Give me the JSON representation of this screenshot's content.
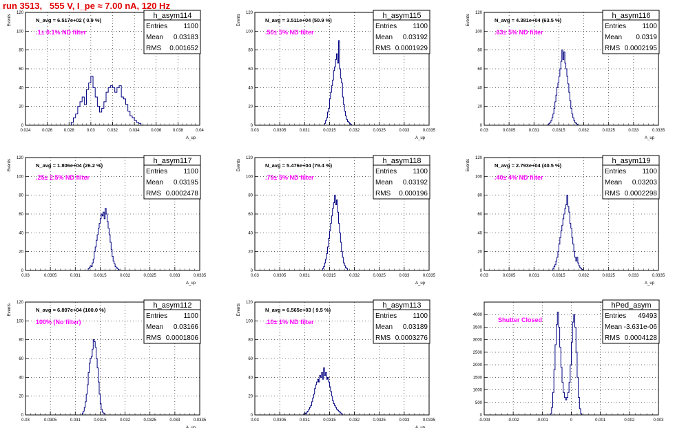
{
  "run_title": "run 3513,   555 V, I_pe ≈ 7.00 nA, 120 Hz",
  "colors": {
    "title": "#e00000",
    "histogram": "#000080",
    "annotation": "#ff00ff",
    "grid": "#000000"
  },
  "chart_data": [
    {
      "type": "bar",
      "name": "h_asym114",
      "stats": {
        "entries_label": "Entries",
        "entries": "1100",
        "mean_label": "Mean",
        "mean": "0.03183",
        "rms_label": "RMS",
        "rms": "0.001652"
      },
      "navg": "N_avg = 6.517e+02 ( 0.9 %)",
      "annotation": ".1± 0.1% ND filter",
      "ylabel": "Events",
      "xlabel": "A_up",
      "xlim": [
        0.024,
        0.04
      ],
      "ylim": [
        0,
        120
      ],
      "xticks": [
        "0.024",
        "0.026",
        "0.028",
        "0.03",
        "0.032",
        "0.034",
        "0.036",
        "0.038",
        "0.04"
      ],
      "yticks": [
        "0",
        "20",
        "40",
        "60",
        "80",
        "100",
        "120"
      ],
      "bins": {
        "start": 0.0282,
        "width": 0.0002,
        "values": [
          3,
          8,
          12,
          20,
          25,
          30,
          22,
          38,
          45,
          52,
          40,
          30,
          20,
          14,
          18,
          25,
          35,
          40,
          42,
          40,
          35,
          40,
          42,
          30,
          28,
          22,
          15,
          10,
          8,
          5,
          3,
          2
        ]
      }
    },
    {
      "type": "bar",
      "name": "h_asym115",
      "stats": {
        "entries_label": "Entries",
        "entries": "1100",
        "mean_label": "Mean",
        "mean": "0.03192",
        "rms_label": "RMS",
        "rms": "0.0001929"
      },
      "navg": "N_avg = 3.511e+04 (50.9 %)",
      "annotation": ".50± 5% ND filter",
      "ylabel": "Events",
      "xlabel": "A_up",
      "xlim": [
        0.03,
        0.0335
      ],
      "ylim": [
        0,
        120
      ],
      "xticks": [
        "0.03",
        "0.0305",
        "0.031",
        "0.0315",
        "0.032",
        "0.0325",
        "0.033",
        "0.0335"
      ],
      "yticks": [
        "0",
        "20",
        "40",
        "60",
        "80",
        "100",
        "120"
      ],
      "bins": {
        "start": 0.0314,
        "width": 2e-05,
        "values": [
          2,
          5,
          8,
          14,
          18,
          28,
          35,
          42,
          48,
          58,
          62,
          70,
          76,
          66,
          90,
          60,
          50,
          45,
          30,
          22,
          15,
          10,
          6,
          4,
          3,
          2,
          1
        ]
      }
    },
    {
      "type": "bar",
      "name": "h_asym116",
      "stats": {
        "entries_label": "Entries",
        "entries": "1100",
        "mean_label": "Mean",
        "mean": "0.0319",
        "rms_label": "RMS",
        "rms": "0.0002195"
      },
      "navg": "N_avg = 4.381e+04 (63.5 %)",
      "annotation": ".63± 5% ND filter",
      "ylabel": "Events",
      "xlabel": "A_up",
      "xlim": [
        0.03,
        0.0335
      ],
      "ylim": [
        0,
        120
      ],
      "xticks": [
        "0.03",
        "0.0305",
        "0.031",
        "0.0315",
        "0.032",
        "0.0325",
        "0.033",
        "0.0335"
      ],
      "yticks": [
        "0",
        "20",
        "40",
        "60",
        "80",
        "100",
        "120"
      ],
      "bins": {
        "start": 0.03128,
        "width": 2e-05,
        "values": [
          1,
          2,
          3,
          5,
          8,
          12,
          18,
          25,
          32,
          40,
          45,
          52,
          60,
          68,
          80,
          70,
          78,
          66,
          60,
          52,
          44,
          35,
          26,
          18,
          12,
          8,
          5,
          3,
          2,
          1
        ]
      }
    },
    {
      "type": "bar",
      "name": "h_asym117",
      "stats": {
        "entries_label": "Entries",
        "entries": "1100",
        "mean_label": "Mean",
        "mean": "0.03195",
        "rms_label": "RMS",
        "rms": "0.0002478"
      },
      "navg": "N_avg = 1.806e+04 (26.2 %)",
      "annotation": ".25± 2.5% ND filter",
      "ylabel": "Events",
      "xlabel": "A_up",
      "xlim": [
        0.03,
        0.0335
      ],
      "ylim": [
        0,
        120
      ],
      "xticks": [
        "0.03",
        "0.0305",
        "0.031",
        "0.0315",
        "0.032",
        "0.0325",
        "0.033",
        "0.0335"
      ],
      "yticks": [
        "0",
        "20",
        "40",
        "60",
        "80",
        "100",
        "120"
      ],
      "bins": {
        "start": 0.03126,
        "width": 2e-05,
        "values": [
          2,
          3,
          5,
          4,
          8,
          12,
          20,
          25,
          32,
          38,
          45,
          50,
          55,
          60,
          58,
          62,
          55,
          66,
          60,
          52,
          45,
          38,
          30,
          22,
          15,
          10,
          7,
          4,
          3,
          2,
          1
        ]
      }
    },
    {
      "type": "bar",
      "name": "h_asym118",
      "stats": {
        "entries_label": "Entries",
        "entries": "1100",
        "mean_label": "Mean",
        "mean": "0.03192",
        "rms_label": "RMS",
        "rms": "0.000196"
      },
      "navg": "N_avg = 5.476e+04 (79.4 %)",
      "annotation": ".79± 5% ND filter",
      "ylabel": "Events",
      "xlabel": "A_up",
      "xlim": [
        0.03,
        0.0335
      ],
      "ylim": [
        0,
        120
      ],
      "xticks": [
        "0.03",
        "0.0305",
        "0.031",
        "0.0315",
        "0.032",
        "0.0325",
        "0.033",
        "0.0335"
      ],
      "yticks": [
        "0",
        "20",
        "40",
        "60",
        "80",
        "100",
        "120"
      ],
      "bins": {
        "start": 0.03136,
        "width": 2e-05,
        "values": [
          2,
          4,
          8,
          12,
          18,
          25,
          34,
          42,
          50,
          58,
          66,
          72,
          80,
          70,
          75,
          62,
          50,
          40,
          30,
          20,
          14,
          8,
          5,
          3,
          2
        ]
      }
    },
    {
      "type": "bar",
      "name": "h_asym119",
      "stats": {
        "entries_label": "Entries",
        "entries": "1100",
        "mean_label": "Mean",
        "mean": "0.03203",
        "rms_label": "RMS",
        "rms": "0.0002298"
      },
      "navg": "N_avg = 2.793e+04 (40.5 %)",
      "annotation": ".40± 4% ND filter",
      "ylabel": "Events",
      "xlabel": "A_up",
      "xlim": [
        0.03,
        0.0335
      ],
      "ylim": [
        0,
        120
      ],
      "xticks": [
        "0.03",
        "0.0305",
        "0.031",
        "0.0315",
        "0.032",
        "0.0325",
        "0.033",
        "0.0335"
      ],
      "yticks": [
        "0",
        "20",
        "40",
        "60",
        "80",
        "100",
        "120"
      ],
      "bins": {
        "start": 0.03138,
        "width": 2e-05,
        "values": [
          2,
          4,
          6,
          10,
          14,
          20,
          28,
          35,
          42,
          48,
          55,
          60,
          66,
          70,
          80,
          68,
          62,
          50,
          45,
          35,
          28,
          20,
          14,
          10,
          14,
          8,
          5,
          3,
          2,
          1
        ]
      }
    },
    {
      "type": "bar",
      "name": "h_asym112",
      "stats": {
        "entries_label": "Entries",
        "entries": "1100",
        "mean_label": "Mean",
        "mean": "0.03166",
        "rms_label": "RMS",
        "rms": "0.0001806"
      },
      "navg": "N_avg = 6.897e+04 (100.0 %)",
      "annotation": "100% (No filter)",
      "ylabel": "Events",
      "xlabel": "A_up",
      "xlim": [
        0.03,
        0.0335
      ],
      "ylim": [
        0,
        120
      ],
      "xticks": [
        "0.03",
        "0.0305",
        "0.031",
        "0.0315",
        "0.032",
        "0.0325",
        "0.033",
        "0.0335"
      ],
      "yticks": [
        "0",
        "20",
        "40",
        "60",
        "80",
        "100",
        "120"
      ],
      "bins": {
        "start": 0.03114,
        "width": 2e-05,
        "values": [
          2,
          4,
          8,
          14,
          22,
          32,
          45,
          55,
          60,
          62,
          70,
          80,
          78,
          72,
          60,
          50,
          35,
          22,
          12,
          6,
          3,
          2,
          1
        ]
      }
    },
    {
      "type": "bar",
      "name": "h_asym113",
      "stats": {
        "entries_label": "Entries",
        "entries": "1100",
        "mean_label": "Mean",
        "mean": "0.03189",
        "rms_label": "RMS",
        "rms": "0.0003276"
      },
      "navg": "N_avg = 6.565e+03 ( 9.5 %)",
      "annotation": ".10± 1% ND filter",
      "ylabel": "Events",
      "xlabel": "A_up",
      "xlim": [
        0.03,
        0.0335
      ],
      "ylim": [
        0,
        120
      ],
      "xticks": [
        "0.03",
        "0.0305",
        "0.031",
        "0.0315",
        "0.032",
        "0.0325",
        "0.033",
        "0.0335"
      ],
      "yticks": [
        "0",
        "20",
        "40",
        "60",
        "80",
        "100",
        "120"
      ],
      "bins": {
        "start": 0.03098,
        "width": 2e-05,
        "values": [
          1,
          2,
          1,
          3,
          4,
          6,
          8,
          10,
          14,
          18,
          22,
          28,
          32,
          35,
          38,
          35,
          42,
          40,
          45,
          38,
          50,
          42,
          45,
          38,
          40,
          35,
          30,
          25,
          20,
          15,
          12,
          10,
          8,
          6,
          5,
          4,
          3,
          2,
          1
        ]
      }
    },
    {
      "type": "bar",
      "name": "hPed_asym",
      "stats": {
        "entries_label": "Entries",
        "entries": "49493",
        "mean_label": "Mean",
        "mean": "-3.631e-06",
        "rms_label": "RMS",
        "rms": "0.0004128"
      },
      "navg": "",
      "annotation": "Shutter Closed",
      "ylabel": "",
      "xlabel": "",
      "xlim": [
        -0.003,
        0.003
      ],
      "ylim": [
        0,
        4500
      ],
      "xticks": [
        "-0.003",
        "-0.002",
        "-0.001",
        "0",
        "0.001",
        "0.002",
        "0.003"
      ],
      "yticks": [
        "0",
        "500",
        "1000",
        "1500",
        "2000",
        "2500",
        "3000",
        "3500",
        "4000"
      ],
      "bins": {
        "start": -0.00072,
        "width": 4e-05,
        "values": [
          50,
          300,
          900,
          1800,
          2800,
          3600,
          4100,
          3500,
          2700,
          1900,
          1300,
          900,
          700,
          600,
          700,
          900,
          1300,
          2000,
          2900,
          3700,
          4000,
          3500,
          2500,
          1500,
          700,
          250,
          50
        ]
      }
    }
  ]
}
